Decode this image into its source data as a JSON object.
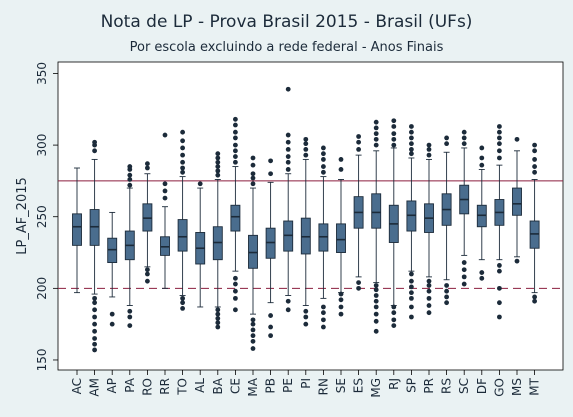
{
  "chart_data": {
    "type": "box",
    "title": "Nota de LP - Prova Brasil 2015 - Brasil (UFs)",
    "subtitle": "Por escola excluindo a rede federal - Anos Finais",
    "ylabel": "LP_AF_2015",
    "xlabel": "",
    "ylim": [
      143,
      358
    ],
    "yticks": [
      150,
      200,
      250,
      300,
      350
    ],
    "grid": false,
    "reference_lines": [
      {
        "y": 275,
        "style": "solid",
        "color": "#8b1e3f"
      },
      {
        "y": 200,
        "style": "dashed",
        "color": "#8b1e3f"
      }
    ],
    "categories": [
      "AC",
      "AM",
      "AP",
      "PA",
      "RO",
      "RR",
      "TO",
      "AL",
      "BA",
      "CE",
      "MA",
      "PB",
      "PE",
      "PI",
      "RN",
      "SE",
      "ES",
      "MG",
      "RJ",
      "SP",
      "PR",
      "RS",
      "SC",
      "DF",
      "GO",
      "MS",
      "MT"
    ],
    "boxes": [
      {
        "q1": 230,
        "median": 243,
        "q3": 252,
        "whisker_low": 197,
        "whisker_high": 284,
        "outliers": []
      },
      {
        "q1": 230,
        "median": 243,
        "q3": 255,
        "whisker_low": 196,
        "whisker_high": 290,
        "outliers": [
          157,
          161,
          165,
          170,
          175,
          180,
          185,
          190,
          193,
          296,
          300,
          302
        ]
      },
      {
        "q1": 218,
        "median": 227,
        "q3": 235,
        "whisker_low": 194,
        "whisker_high": 253,
        "outliers": [
          175,
          182
        ]
      },
      {
        "q1": 220,
        "median": 230,
        "q3": 240,
        "whisker_low": 188,
        "whisker_high": 270,
        "outliers": [
          174,
          180,
          184,
          272,
          276,
          279,
          283,
          285
        ]
      },
      {
        "q1": 240,
        "median": 249,
        "q3": 259,
        "whisker_low": 215,
        "whisker_high": 280,
        "outliers": [
          205,
          210,
          213,
          284,
          287
        ]
      },
      {
        "q1": 223,
        "median": 229,
        "q3": 236,
        "whisker_low": 200,
        "whisker_high": 257,
        "outliers": [
          263,
          268,
          273,
          307
        ]
      },
      {
        "q1": 226,
        "median": 236,
        "q3": 248,
        "whisker_low": 195,
        "whisker_high": 278,
        "outliers": [
          186,
          190,
          193,
          281,
          284,
          288,
          293,
          298,
          303,
          309
        ]
      },
      {
        "q1": 217,
        "median": 228,
        "q3": 239,
        "whisker_low": 187,
        "whisker_high": 270,
        "outliers": [
          273
        ]
      },
      {
        "q1": 220,
        "median": 232,
        "q3": 243,
        "whisker_low": 187,
        "whisker_high": 276,
        "outliers": [
          173,
          176,
          179,
          182,
          185,
          279,
          282,
          285,
          288,
          291,
          294
        ]
      },
      {
        "q1": 240,
        "median": 250,
        "q3": 258,
        "whisker_low": 212,
        "whisker_high": 285,
        "outliers": [
          185,
          193,
          198,
          203,
          207,
          288,
          292,
          296,
          300,
          305,
          309,
          314,
          318
        ]
      },
      {
        "q1": 214,
        "median": 225,
        "q3": 237,
        "whisker_low": 182,
        "whisker_high": 270,
        "outliers": [
          158,
          163,
          167,
          171,
          175,
          178,
          273,
          277,
          280,
          286,
          291
        ]
      },
      {
        "q1": 221,
        "median": 232,
        "q3": 242,
        "whisker_low": 190,
        "whisker_high": 274,
        "outliers": [
          167,
          173,
          181,
          280,
          289
        ]
      },
      {
        "q1": 226,
        "median": 237,
        "q3": 247,
        "whisker_low": 195,
        "whisker_high": 280,
        "outliers": [
          185,
          191,
          283,
          288,
          292,
          297,
          302,
          307,
          339
        ]
      },
      {
        "q1": 224,
        "median": 236,
        "q3": 249,
        "whisker_low": 188,
        "whisker_high": 290,
        "outliers": [
          175,
          180,
          184,
          293,
          297,
          301,
          304
        ]
      },
      {
        "q1": 226,
        "median": 236,
        "q3": 245,
        "whisker_low": 193,
        "whisker_high": 278,
        "outliers": [
          173,
          178,
          183,
          187,
          281,
          285,
          290,
          294,
          298
        ]
      },
      {
        "q1": 225,
        "median": 234,
        "q3": 245,
        "whisker_low": 197,
        "whisker_high": 276,
        "outliers": [
          182,
          187,
          192,
          196,
          283,
          290
        ]
      },
      {
        "q1": 242,
        "median": 253,
        "q3": 264,
        "whisker_low": 208,
        "whisker_high": 293,
        "outliers": [
          200,
          204,
          297,
          302,
          306
        ]
      },
      {
        "q1": 242,
        "median": 253,
        "q3": 266,
        "whisker_low": 204,
        "whisker_high": 296,
        "outliers": [
          170,
          177,
          182,
          187,
          191,
          195,
          199,
          202,
          300,
          304,
          308,
          312,
          316
        ]
      },
      {
        "q1": 232,
        "median": 245,
        "q3": 258,
        "whisker_low": 188,
        "whisker_high": 298,
        "outliers": [
          174,
          178,
          183,
          187,
          300,
          304,
          308,
          313,
          317
        ]
      },
      {
        "q1": 240,
        "median": 251,
        "q3": 261,
        "whisker_low": 212,
        "whisker_high": 291,
        "outliers": [
          180,
          187,
          193,
          197,
          201,
          205,
          210,
          294,
          297,
          301,
          305,
          309,
          313
        ]
      },
      {
        "q1": 239,
        "median": 249,
        "q3": 259,
        "whisker_low": 208,
        "whisker_high": 290,
        "outliers": [
          183,
          188,
          193,
          198,
          202,
          205,
          293,
          297,
          300
        ]
      },
      {
        "q1": 244,
        "median": 255,
        "q3": 266,
        "whisker_low": 206,
        "whisker_high": 295,
        "outliers": [
          190,
          194,
          198,
          202,
          301,
          305
        ]
      },
      {
        "q1": 252,
        "median": 262,
        "q3": 272,
        "whisker_low": 223,
        "whisker_high": 298,
        "outliers": [
          203,
          208,
          213,
          218,
          301,
          305,
          309
        ]
      },
      {
        "q1": 243,
        "median": 251,
        "q3": 258,
        "whisker_low": 220,
        "whisker_high": 283,
        "outliers": [
          207,
          211,
          286,
          291,
          298
        ]
      },
      {
        "q1": 244,
        "median": 253,
        "q3": 262,
        "whisker_low": 220,
        "whisker_high": 286,
        "outliers": [
          180,
          190,
          200,
          212,
          216,
          291,
          296,
          301,
          305,
          309,
          313
        ]
      },
      {
        "q1": 251,
        "median": 259,
        "q3": 270,
        "whisker_low": 222,
        "whisker_high": 296,
        "outliers": [
          219,
          304
        ]
      },
      {
        "q1": 228,
        "median": 238,
        "q3": 247,
        "whisker_low": 197,
        "whisker_high": 276,
        "outliers": [
          191,
          194,
          281,
          285,
          290,
          296,
          300
        ]
      }
    ],
    "colors": {
      "background": "#eaf2f3",
      "plot_area": "#ffffff",
      "box_fill": "#4a6d8e",
      "box_stroke": "#1c2b3a",
      "median": "#1c2b3a",
      "outlier": "#1c2b3a",
      "reference_line": "#8b1e3f"
    }
  }
}
